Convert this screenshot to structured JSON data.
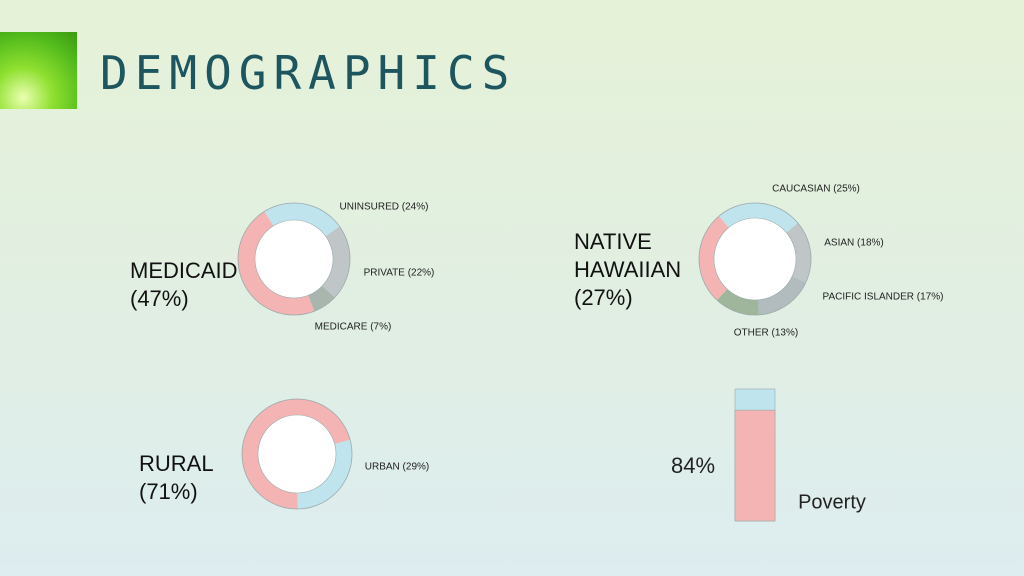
{
  "header": {
    "title": "DEMOGRAPHICS"
  },
  "chart_data": [
    {
      "type": "donut",
      "values": [
        24,
        22,
        7,
        47
      ],
      "value_labels": [
        "UNINSURED (24%)",
        "PRIVATE (22%)",
        "MEDICARE (7%)",
        "MEDICAID (47%)"
      ],
      "colors": [
        "#c0e4ee",
        "#c0c5c8",
        "#a9b6ad",
        "#f4b4b4"
      ]
    },
    {
      "type": "donut",
      "values": [
        25,
        18,
        17,
        13,
        27
      ],
      "value_labels": [
        "CAUCASIAN (25%)",
        "ASIAN (18%)",
        "PACIFIC ISLANDER (17%)",
        "OTHER (13%)",
        "NATIVE HAWAIIAN (27%)"
      ],
      "colors": [
        "#c0e4ee",
        "#c0c5c8",
        "#b2bbbd",
        "#a0b69c",
        "#f4b4b4"
      ]
    },
    {
      "type": "donut",
      "values": [
        29,
        71
      ],
      "value_labels": [
        "URBAN (29%)",
        "RURAL (71%)"
      ],
      "colors": [
        "#c0e4ee",
        "#f4b4b4"
      ]
    },
    {
      "type": "bar",
      "categories": [
        "Poverty"
      ],
      "values": [
        84
      ],
      "value_labels": [
        "84%"
      ],
      "ylim": [
        0,
        100
      ],
      "color": "#f4b4b4"
    }
  ]
}
